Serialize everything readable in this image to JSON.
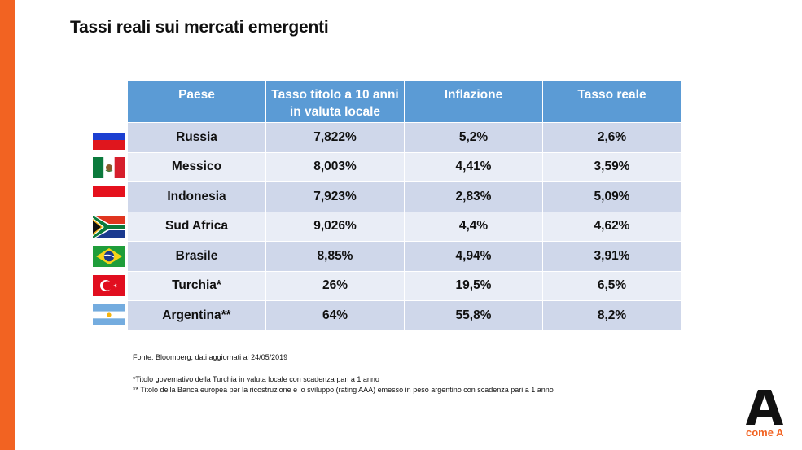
{
  "page": {
    "title": "Tassi reali sui mercati emergenti",
    "accent_color": "#f26322",
    "header_color": "#5b9bd5"
  },
  "table": {
    "headers": [
      "Paese",
      "Tasso titolo a 10 anni in valuta locale",
      "Inflazione",
      "Tasso reale"
    ],
    "rows": [
      {
        "flag": "russia-flag",
        "country": "Russia",
        "yield": "7,822%",
        "inflation": "5,2%",
        "real": "2,6%"
      },
      {
        "flag": "mexico-flag",
        "country": "Messico",
        "yield": "8,003%",
        "inflation": "4,41%",
        "real": "3,59%"
      },
      {
        "flag": "indonesia-flag",
        "country": "Indonesia",
        "yield": "7,923%",
        "inflation": "2,83%",
        "real": "5,09%"
      },
      {
        "flag": "south-africa-flag",
        "country": "Sud Africa",
        "yield": "9,026%",
        "inflation": "4,4%",
        "real": "4,62%"
      },
      {
        "flag": "brazil-flag",
        "country": "Brasile",
        "yield": "8,85%",
        "inflation": "4,94%",
        "real": "3,91%"
      },
      {
        "flag": "turkey-flag",
        "country": "Turchia*",
        "yield": "26%",
        "inflation": "19,5%",
        "real": "6,5%"
      },
      {
        "flag": "argentina-flag",
        "country": "Argentina**",
        "yield": "64%",
        "inflation": "55,8%",
        "real": "8,2%"
      }
    ]
  },
  "notes": {
    "source": "Fonte: Bloomberg, dati aggiornati al 24/05/2019",
    "note1": "*Titolo governativo della Turchia in valuta locale con scadenza pari a 1 anno",
    "note2": "** Titolo della Banca europea per la ricostruzione e lo sviluppo (rating AAA) emesso in peso argentino con scadenza pari a 1 anno"
  },
  "logo": {
    "letter": "A",
    "text": "come A"
  }
}
